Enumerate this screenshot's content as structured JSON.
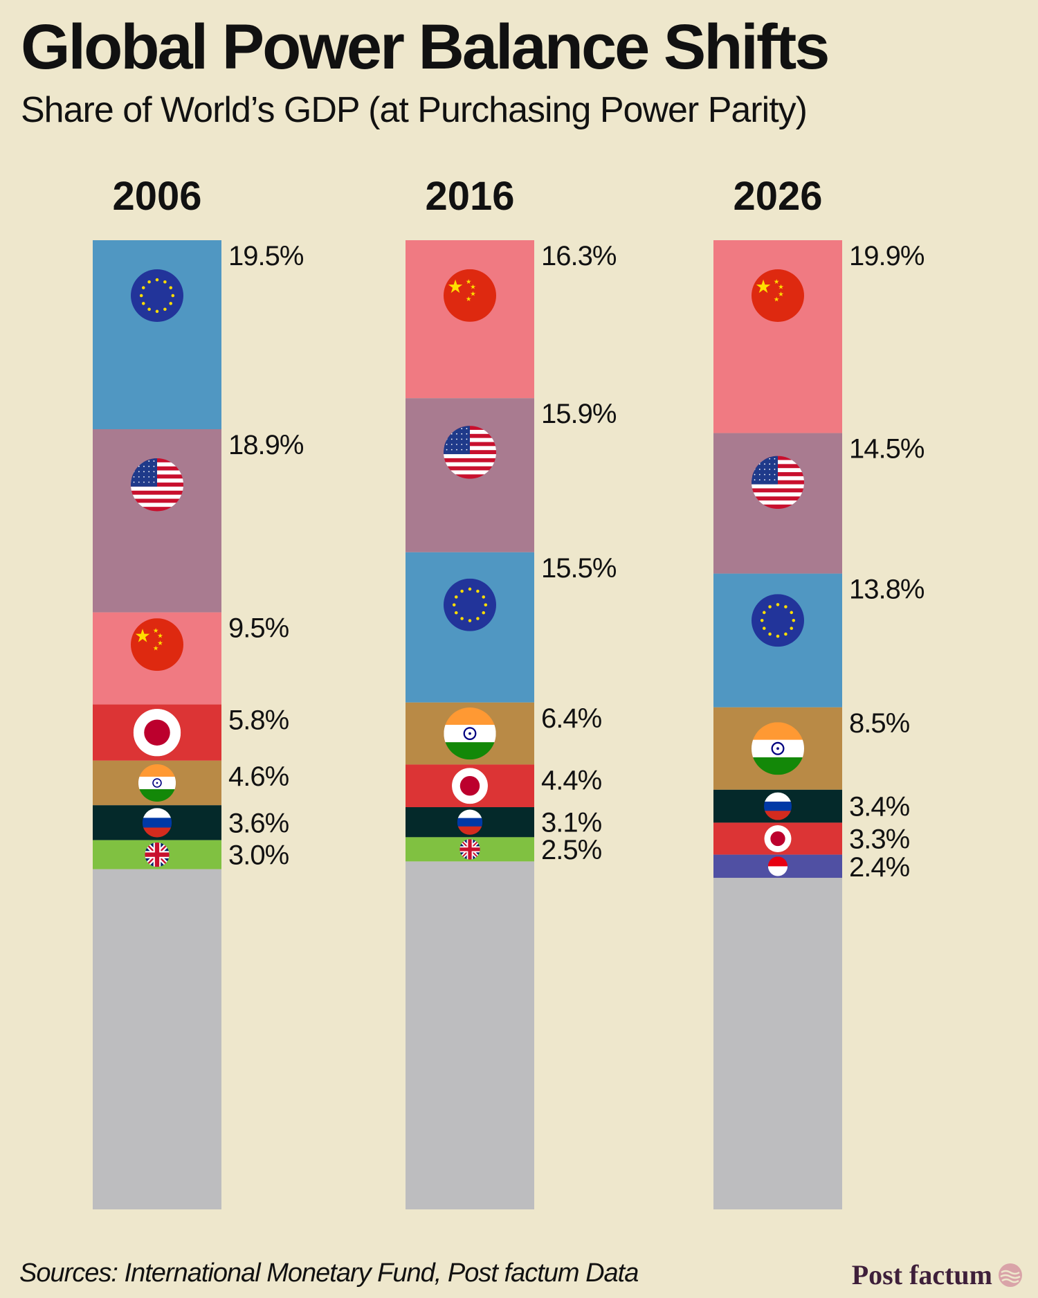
{
  "title": "Global Power Balance Shifts",
  "subtitle": "Share of World’s GDP (at Purchasing Power Parity)",
  "footer": {
    "source": "Sources: International Monetary Fund, Post factum Data",
    "brand": "Post factum"
  },
  "colors": {
    "background": "#eee7cc",
    "European Union": "#5097c2",
    "United States": "#a97b90",
    "China": "#f07a82",
    "Japan": "#dc3435",
    "India": "#b98a46",
    "Russia": "#04292a",
    "United Kingdom": "#80c141",
    "Indonesia": "#5050a3",
    "Rest of world": "#bdbdbf"
  },
  "chart_data": [
    {
      "type": "bar",
      "stacked": true,
      "category": "2006",
      "series": [
        {
          "flag": "eu-flag",
          "value": 19.5,
          "label": "19.5%",
          "color_key": "European Union"
        },
        {
          "flag": "us-flag",
          "value": 18.9,
          "label": "18.9%",
          "color_key": "United States"
        },
        {
          "flag": "china-flag",
          "value": 9.5,
          "label": "9.5%",
          "color_key": "China"
        },
        {
          "flag": "japan-flag",
          "value": 5.8,
          "label": "5.8%",
          "color_key": "Japan"
        },
        {
          "flag": "india-flag",
          "value": 4.6,
          "label": "4.6%",
          "color_key": "India"
        },
        {
          "flag": "russia-flag",
          "value": 3.6,
          "label": "3.6%",
          "color_key": "Russia"
        },
        {
          "flag": "uk-flag",
          "value": 3.0,
          "label": "3.0%",
          "color_key": "United Kingdom"
        },
        {
          "flag": "",
          "value": 35.1,
          "label": "",
          "color_key": "Rest of world"
        }
      ]
    },
    {
      "type": "bar",
      "stacked": true,
      "category": "2016",
      "series": [
        {
          "flag": "china-flag",
          "value": 16.3,
          "label": "16.3%",
          "color_key": "China"
        },
        {
          "flag": "us-flag",
          "value": 15.9,
          "label": "15.9%",
          "color_key": "United States"
        },
        {
          "flag": "eu-flag",
          "value": 15.5,
          "label": "15.5%",
          "color_key": "European Union"
        },
        {
          "flag": "india-flag",
          "value": 6.4,
          "label": "6.4%",
          "color_key": "India"
        },
        {
          "flag": "japan-flag",
          "value": 4.4,
          "label": "4.4%",
          "color_key": "Japan"
        },
        {
          "flag": "russia-flag",
          "value": 3.1,
          "label": "3.1%",
          "color_key": "Russia"
        },
        {
          "flag": "uk-flag",
          "value": 2.5,
          "label": "2.5%",
          "color_key": "United Kingdom"
        },
        {
          "flag": "",
          "value": 35.9,
          "label": "",
          "color_key": "Rest of world"
        }
      ]
    },
    {
      "type": "bar",
      "stacked": true,
      "category": "2026",
      "series": [
        {
          "flag": "china-flag",
          "value": 19.9,
          "label": "19.9%",
          "color_key": "China"
        },
        {
          "flag": "us-flag",
          "value": 14.5,
          "label": "14.5%",
          "color_key": "United States"
        },
        {
          "flag": "eu-flag",
          "value": 13.8,
          "label": "13.8%",
          "color_key": "European Union"
        },
        {
          "flag": "india-flag",
          "value": 8.5,
          "label": "8.5%",
          "color_key": "India"
        },
        {
          "flag": "russia-flag",
          "value": 3.4,
          "label": "3.4%",
          "color_key": "Russia"
        },
        {
          "flag": "japan-flag",
          "value": 3.3,
          "label": "3.3%",
          "color_key": "Japan"
        },
        {
          "flag": "indonesia-flag",
          "value": 2.4,
          "label": "2.4%",
          "color_key": "Indonesia"
        },
        {
          "flag": "",
          "value": 34.2,
          "label": "",
          "color_key": "Rest of world"
        }
      ]
    }
  ]
}
